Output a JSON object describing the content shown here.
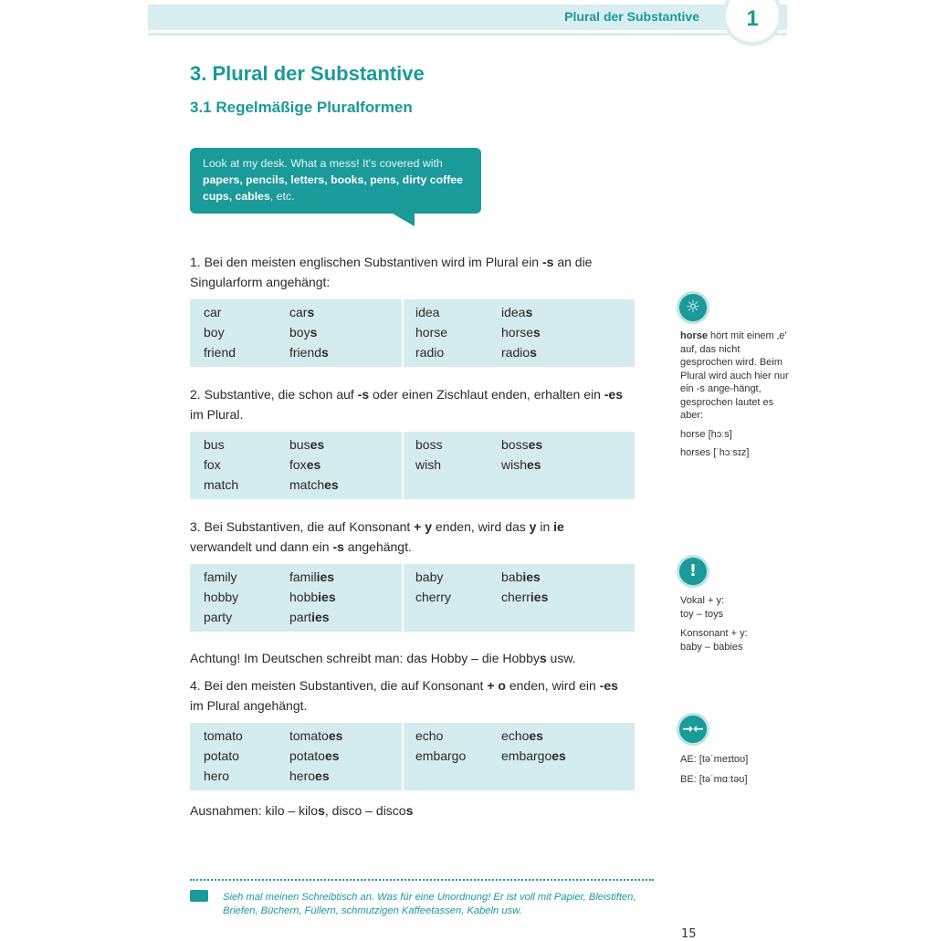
{
  "header": {
    "title": "Plural der Substantive",
    "chapter": "1"
  },
  "heading": "3. Plural der Substantive",
  "subheading": "3.1 Regelmäßige Pluralformen",
  "bubble": {
    "plain1": "Look at my desk. What a mess! It's covered with",
    "bold": "papers, pencils, letters, books, pens, dirty coffee cups, cables",
    "plain2": ", etc."
  },
  "rules": [
    {
      "text": "1. Bei den meisten englischen Substantiven wird im Plural ein ",
      "bold": "-s",
      "text2": " an die Singularform angehängt:",
      "rows": [
        [
          [
            "car"
          ],
          [
            "car",
            "s"
          ],
          [
            "idea"
          ],
          [
            "idea",
            "s"
          ]
        ],
        [
          [
            "boy"
          ],
          [
            "boy",
            "s"
          ],
          [
            "horse"
          ],
          [
            "horse",
            "s"
          ]
        ],
        [
          [
            "friend"
          ],
          [
            "friend",
            "s"
          ],
          [
            "radio"
          ],
          [
            "radio",
            "s"
          ]
        ]
      ]
    },
    {
      "text": "2. Substantive, die schon auf ",
      "bold": "-s",
      "text2": " oder einen Zischlaut enden, erhalten ein ",
      "bold2": "-es",
      "text3": " im Plural.",
      "rows": [
        [
          [
            "bus"
          ],
          [
            "bus",
            "es"
          ],
          [
            "boss"
          ],
          [
            "boss",
            "es"
          ]
        ],
        [
          [
            "fox"
          ],
          [
            "fox",
            "es"
          ],
          [
            "wish"
          ],
          [
            "wish",
            "es"
          ]
        ],
        [
          [
            "match"
          ],
          [
            "match",
            "es"
          ],
          [
            ""
          ],
          [
            ""
          ]
        ]
      ]
    },
    {
      "text": "3. Bei Substantiven, die auf Konsonant ",
      "bold": "+ y",
      "text2": " enden, wird das ",
      "bold2": "y",
      "text3": " in ",
      "bold3": "ie",
      "text4": " verwandelt und dann ein ",
      "bold4": "-s",
      "text5": " angehängt.",
      "rows": [
        [
          [
            "family"
          ],
          [
            "famil",
            "ies"
          ],
          [
            "baby"
          ],
          [
            "bab",
            "ies"
          ]
        ],
        [
          [
            "hobby"
          ],
          [
            "hobb",
            "ies"
          ],
          [
            "cherry"
          ],
          [
            "cherr",
            "ies"
          ]
        ],
        [
          [
            "party"
          ],
          [
            "part",
            "ies"
          ],
          [
            ""
          ],
          [
            ""
          ]
        ]
      ]
    },
    {
      "text": "4. Bei den meisten Substantiven, die auf Konsonant ",
      "bold": "+ o",
      "text2": " enden, wird ein ",
      "bold2": "-es",
      "text3": " im Plural angehängt.",
      "rows": [
        [
          [
            "tomato"
          ],
          [
            "tomato",
            "es"
          ],
          [
            "echo"
          ],
          [
            "echo",
            "es"
          ]
        ],
        [
          [
            "potato"
          ],
          [
            "potato",
            "es"
          ],
          [
            "embargo"
          ],
          [
            "embargo",
            "es"
          ]
        ],
        [
          [
            "hero"
          ],
          [
            "hero",
            "es"
          ],
          [
            ""
          ],
          [
            ""
          ]
        ]
      ]
    }
  ],
  "note_hobby": {
    "text": "Achtung! Im Deutschen schreibt man: das Hobby – die Hobby",
    "bold": "s",
    "text2": " usw."
  },
  "exceptions": {
    "text": "Ausnahmen: kilo – kilo",
    "bold": "s",
    "text2": ", disco – disco",
    "bold2": "s"
  },
  "sidebar": {
    "tip": {
      "icon": "lightbulb-icon",
      "bold": "horse",
      "text": " hört mit einem ‚e' auf, das nicht gesprochen wird. Beim Plural wird auch hier nur ein -s ange-hängt, gesprochen lautet es aber:",
      "l1": "horse [hɔːs]",
      "l2": "horses [ˈhɔːsɪz]"
    },
    "warn": {
      "icon": "exclamation-icon",
      "l1": "Vokal + y:",
      "l2": "toy – toys",
      "l3": "Konsonant + y:",
      "l4": "baby – babies"
    },
    "diff": {
      "icon": "arrows-inward-icon",
      "l1": "AE: [təˈmeɪtoʊ]",
      "l2": "BE: [təˈmɑːtəʊ]"
    }
  },
  "translation": "Sieh mal meinen Schreibtisch an. Was für eine Unordnung! Er ist voll mit Papier, Bleistiften, Briefen, Büchern, Füllern, schmutzigen Kaffeetassen, Kabeln usw.",
  "page_number": "15",
  "colors": {
    "accent": "#1a9a98",
    "table_bg": "#d5ecee"
  }
}
